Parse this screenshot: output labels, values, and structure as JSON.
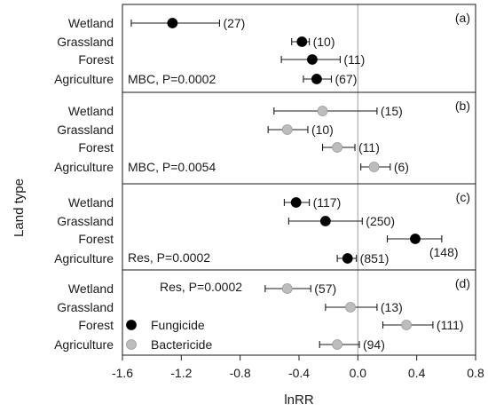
{
  "chart_data": {
    "type": "scatter",
    "ylabel": "Land type",
    "xlabel": "lnRR",
    "xlim": [
      -1.6,
      0.8
    ],
    "x_ticks": [
      "-1.6",
      "-1.2",
      "-0.8",
      "-0.4",
      "0.0",
      "0.4",
      "0.8"
    ],
    "reference_line_x": 0,
    "colors": {
      "Fungicide": "#000000",
      "Bactericide": "#bdbdbd",
      "reference_line": "#b0b0b0"
    },
    "legend": {
      "placement": "panel-d left",
      "entries": [
        {
          "name": "Fungicide",
          "color": "#000000"
        },
        {
          "name": "Bactericide",
          "color": "#bdbdbd"
        }
      ]
    },
    "panels": [
      {
        "label": "(a)",
        "annotation": "MBC, P=0.0002",
        "categories": [
          "Wetland",
          "Grassland",
          "Forest",
          "Agriculture"
        ],
        "points": [
          {
            "category": "Wetland",
            "mean": -1.26,
            "low": -1.54,
            "high": -0.94,
            "n_label": "(27)",
            "series": "Fungicide"
          },
          {
            "category": "Grassland",
            "mean": -0.38,
            "low": -0.45,
            "high": -0.33,
            "n_label": "(10)",
            "series": "Fungicide"
          },
          {
            "category": "Forest",
            "mean": -0.31,
            "low": -0.52,
            "high": -0.12,
            "n_label": "(11)",
            "series": "Fungicide"
          },
          {
            "category": "Agriculture",
            "mean": -0.28,
            "low": -0.37,
            "high": -0.18,
            "n_label": "(67)",
            "series": "Fungicide"
          }
        ]
      },
      {
        "label": "(b)",
        "annotation": "MBC, P=0.0054",
        "categories": [
          "Wetland",
          "Grassland",
          "Forest",
          "Agriculture"
        ],
        "points": [
          {
            "category": "Wetland",
            "mean": -0.24,
            "low": -0.57,
            "high": 0.13,
            "n_label": "(15)",
            "series": "Bactericide"
          },
          {
            "category": "Grassland",
            "mean": -0.48,
            "low": -0.61,
            "high": -0.34,
            "n_label": "(10)",
            "series": "Bactericide"
          },
          {
            "category": "Forest",
            "mean": -0.14,
            "low": -0.24,
            "high": -0.02,
            "n_label": "(11)",
            "series": "Bactericide"
          },
          {
            "category": "Agriculture",
            "mean": 0.11,
            "low": 0.02,
            "high": 0.22,
            "n_label": "(6)",
            "series": "Bactericide"
          }
        ]
      },
      {
        "label": "(c)",
        "annotation": "Res, P=0.0002",
        "categories": [
          "Wetland",
          "Grassland",
          "Forest",
          "Agriculture"
        ],
        "points": [
          {
            "category": "Wetland",
            "mean": -0.42,
            "low": -0.5,
            "high": -0.33,
            "n_label": "(117)",
            "series": "Fungicide"
          },
          {
            "category": "Grassland",
            "mean": -0.22,
            "low": -0.47,
            "high": 0.03,
            "n_label": "(250)",
            "series": "Fungicide"
          },
          {
            "category": "Forest",
            "mean": 0.39,
            "low": 0.2,
            "high": 0.57,
            "n_label": "(148)",
            "series": "Fungicide"
          },
          {
            "category": "Agriculture",
            "mean": -0.07,
            "low": -0.14,
            "high": -0.01,
            "n_label": "(851)",
            "series": "Fungicide"
          }
        ]
      },
      {
        "label": "(d)",
        "annotation": "Res, P=0.0002",
        "categories": [
          "Wetland",
          "Grassland",
          "Forest",
          "Agriculture"
        ],
        "points": [
          {
            "category": "Wetland",
            "mean": -0.48,
            "low": -0.63,
            "high": -0.32,
            "n_label": "(57)",
            "series": "Bactericide"
          },
          {
            "category": "Grassland",
            "mean": -0.05,
            "low": -0.22,
            "high": 0.13,
            "n_label": "(13)",
            "series": "Bactericide"
          },
          {
            "category": "Forest",
            "mean": 0.33,
            "low": 0.17,
            "high": 0.51,
            "n_label": "(111)",
            "series": "Bactericide"
          },
          {
            "category": "Agriculture",
            "mean": -0.14,
            "low": -0.26,
            "high": 0.01,
            "n_label": "(94)",
            "series": "Bactericide"
          }
        ]
      }
    ]
  }
}
